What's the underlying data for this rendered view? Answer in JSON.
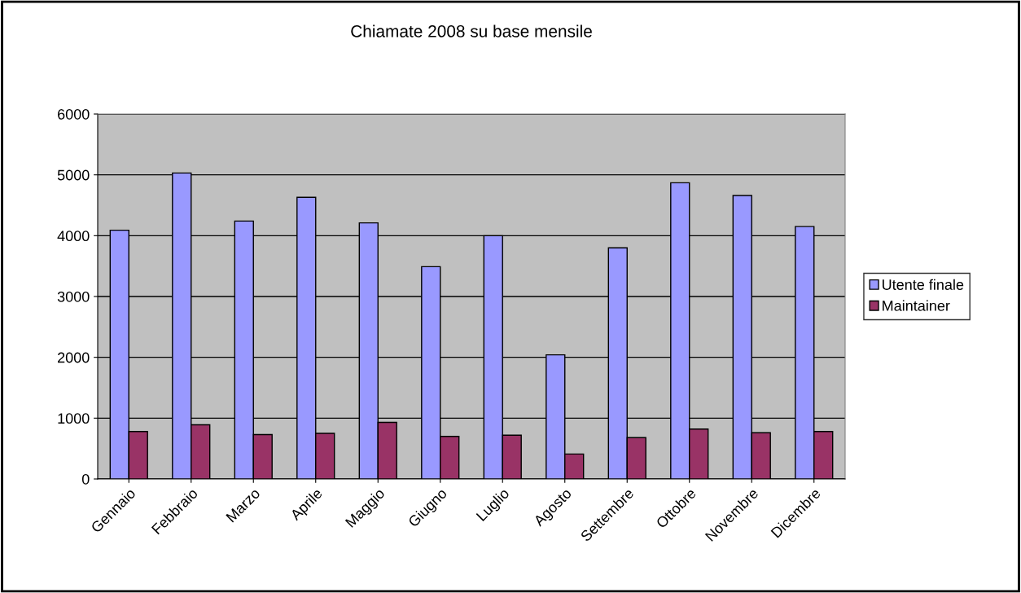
{
  "chart_data": {
    "type": "bar",
    "title": "Chiamate 2008 su base mensile",
    "categories": [
      "Gennaio",
      "Febbraio",
      "Marzo",
      "Aprile",
      "Maggio",
      "Giugno",
      "Luglio",
      "Agosto",
      "Settembre",
      "Ottobre",
      "Novembre",
      "Dicembre"
    ],
    "series": [
      {
        "name": "Utente finale",
        "color": "#9999ff",
        "values": [
          4090,
          5030,
          4240,
          4630,
          4210,
          3490,
          4000,
          2040,
          3800,
          4870,
          4660,
          4150
        ]
      },
      {
        "name": "Maintainer",
        "color": "#993366",
        "values": [
          780,
          890,
          730,
          750,
          930,
          700,
          720,
          410,
          680,
          820,
          760,
          780
        ]
      }
    ],
    "ylim": [
      0,
      6000
    ],
    "yticks": [
      0,
      1000,
      2000,
      3000,
      4000,
      5000,
      6000
    ],
    "grid": "y",
    "legend": "right"
  }
}
